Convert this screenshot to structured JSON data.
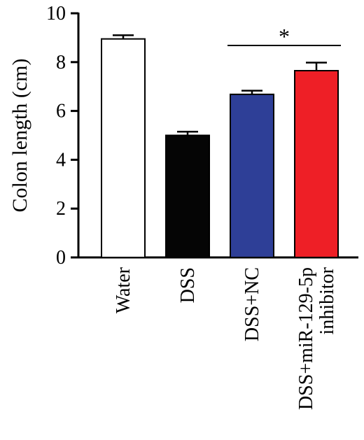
{
  "chart_data": {
    "type": "bar",
    "title": "",
    "xlabel": "",
    "ylabel": "Colon length (cm)",
    "ylim": [
      0,
      10
    ],
    "yticks": [
      "0",
      "2",
      "4",
      "6",
      "8",
      "10"
    ],
    "grid": false,
    "categories": [
      [
        "Water"
      ],
      [
        "DSS"
      ],
      [
        "DSS+NC"
      ],
      [
        "DSS+miR-129-5p",
        "inhibitor"
      ]
    ],
    "values": [
      8.95,
      5.0,
      6.68,
      7.65
    ],
    "errors": [
      0.15,
      0.15,
      0.15,
      0.33
    ],
    "colors": [
      "#ffffff",
      "#050505",
      "#2e3f97",
      "#ee1f26"
    ],
    "significance": [
      {
        "from": 2,
        "to": 3,
        "label": "*"
      }
    ]
  }
}
